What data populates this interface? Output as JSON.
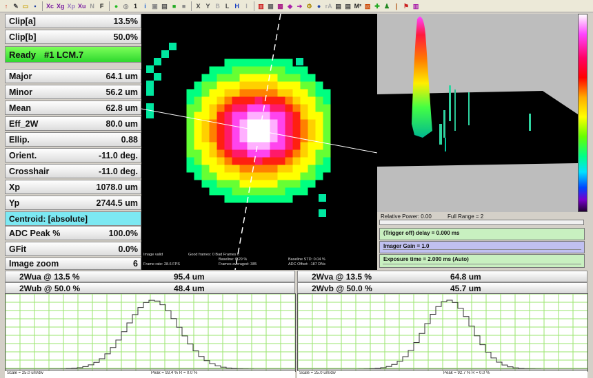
{
  "toolbar": {
    "buttons": [
      {
        "name": "up-arrow-icon",
        "label": "↑",
        "color": "#cc2200"
      },
      {
        "name": "pencil-icon",
        "label": "✎",
        "color": "#444"
      },
      {
        "name": "open-folder-icon",
        "label": "▭",
        "color": "#c8a000"
      },
      {
        "name": "save-icon",
        "label": "▪",
        "color": "#2040a0"
      },
      {
        "name": "xc-button",
        "label": "Xc",
        "color": "#7a1fa0"
      },
      {
        "name": "xg-button",
        "label": "Xg",
        "color": "#7a1fa0"
      },
      {
        "name": "xp-button",
        "label": "Xp",
        "color": "#9a7ac0"
      },
      {
        "name": "xu-button",
        "label": "Xu",
        "color": "#7a1fa0"
      },
      {
        "name": "n-button",
        "label": "N",
        "color": "#999"
      },
      {
        "name": "f-button",
        "label": "F",
        "color": "#222"
      },
      {
        "name": "green-circle-icon",
        "label": "●",
        "color": "#22bb22"
      },
      {
        "name": "grey-circle-icon",
        "label": "◎",
        "color": "#888"
      },
      {
        "name": "one-button",
        "label": "1",
        "color": "#222"
      },
      {
        "name": "info-icon",
        "label": "i",
        "color": "#1a60d0"
      },
      {
        "name": "lock-icon",
        "label": "▣",
        "color": "#888"
      },
      {
        "name": "printer-icon",
        "label": "▤",
        "color": "#555"
      },
      {
        "name": "green-square-icon",
        "label": "■",
        "color": "#22aa22"
      },
      {
        "name": "grey-square-icon",
        "label": "■",
        "color": "#888"
      },
      {
        "name": "x-button",
        "label": "X",
        "color": "#444"
      },
      {
        "name": "y-button",
        "label": "Y",
        "color": "#444"
      },
      {
        "name": "b-button",
        "label": "B",
        "color": "#aaa"
      },
      {
        "name": "l-button",
        "label": "L",
        "color": "#444"
      },
      {
        "name": "h-button",
        "label": "H",
        "color": "#1a40c0"
      },
      {
        "name": "i-button",
        "label": "I",
        "color": "#aaa"
      },
      {
        "name": "histogram-icon",
        "label": "▥",
        "color": "#cc2222"
      },
      {
        "name": "grid-icon",
        "label": "▦",
        "color": "#666"
      },
      {
        "name": "pattern-icon",
        "label": "▩",
        "color": "#aa2288"
      },
      {
        "name": "left-arrow-icon",
        "label": "◆",
        "color": "#aa22aa"
      },
      {
        "name": "right-arrow-icon",
        "label": "➔",
        "color": "#aa22aa"
      },
      {
        "name": "link-icon",
        "label": "⚙",
        "color": "#aa8800"
      },
      {
        "name": "globe-icon",
        "label": "●",
        "color": "#2244aa"
      },
      {
        "name": "ra-button",
        "label": "rA",
        "color": "#aaa"
      },
      {
        "name": "print-icon",
        "label": "▤",
        "color": "#444"
      },
      {
        "name": "print2-icon",
        "label": "▤",
        "color": "#444"
      },
      {
        "name": "m2-button",
        "label": "M²",
        "color": "#222"
      },
      {
        "name": "chart-icon",
        "label": "▧",
        "color": "#cc4400"
      },
      {
        "name": "plus-icon",
        "label": "✚",
        "color": "#22aa22"
      },
      {
        "name": "person-icon",
        "label": "♟",
        "color": "#228822"
      },
      {
        "name": "pin-icon",
        "label": "❘",
        "color": "#aa4400"
      },
      {
        "name": "magnet-icon",
        "label": "⚑",
        "color": "#cc2222"
      },
      {
        "name": "bars-icon",
        "label": "▥",
        "color": "#aa22aa"
      }
    ]
  },
  "panel": {
    "clip_a": {
      "label": "Clip[a]",
      "value": "13.5%"
    },
    "clip_b": {
      "label": "Clip[b]",
      "value": "50.0%"
    },
    "ready": {
      "status": "Ready",
      "device": "#1 LCM.7"
    },
    "major": {
      "label": "Major",
      "value": "64.1 um"
    },
    "minor": {
      "label": "Minor",
      "value": "56.2 um"
    },
    "mean": {
      "label": "Mean",
      "value": "62.8 um"
    },
    "eff2w": {
      "label": "Eff_2W",
      "value": "80.0 um"
    },
    "ellip": {
      "label": "Ellip.",
      "value": "0.88"
    },
    "orient": {
      "label": "Orient.",
      "value": "-11.0 deg."
    },
    "crosshair": {
      "label": "Crosshair",
      "value": "-11.0 deg."
    },
    "xp": {
      "label": "Xp",
      "value": "1078.0 um"
    },
    "yp": {
      "label": "Yp",
      "value": "2744.5 um"
    },
    "centroid": {
      "label": "Centroid: [absolute]"
    },
    "adc_peak": {
      "label": "ADC Peak %",
      "value": "100.0%"
    },
    "gfit": {
      "label": "GFit",
      "value": "0.0%"
    },
    "zoom": {
      "label": "Image zoom",
      "value": "6"
    }
  },
  "beam_image": {
    "status": "Image valid",
    "frames": "Good frames: 0 Bad Frames 0",
    "baseline": "Baseline: 0.29 %",
    "baseline_std": "Baseline STD: 0.04 %",
    "frame_rate": "Frame rate: 28.6 FPS",
    "frames_averaged": "Frames averaged: 385",
    "adc_offset": "ADC Offset: -187 DNs"
  },
  "controls": {
    "relative_power": "Relative Power: 0.00",
    "full_range": "Full Range = 2",
    "trigger": "(Trigger off) delay = 0.000 ms",
    "gain": "Imager Gain = 1.0",
    "exposure": "Exposure time = 2.000 ms (Auto)"
  },
  "stats": {
    "wua_label": "2Wua @ 13.5 %",
    "wua_value": "95.4 um",
    "wub_label": "2Wub @ 50.0 %",
    "wub_value": "48.4 um",
    "wva_label": "2Wva @ 13.5 %",
    "wva_value": "64.8 um",
    "wvb_label": "2Wvb @ 50.0 %",
    "wvb_value": "45.7 um"
  },
  "footer": {
    "left_scale": "Scale = 25.0 um/div",
    "left_peak": "Peak = 93.4 %  R = 0.0 %",
    "right_scale": "Scale = 25.0 um/div",
    "right_peak": "Peak = 92.7 %  R = 0.0 %"
  },
  "colors": {
    "ready_green": "#2ed82e",
    "centroid_cyan": "#7ce8f2",
    "grid_green": "#9ae66e",
    "trigger_bar": "#c8f0c0",
    "gain_bar": "#c0c0f0",
    "exposure_bar": "#c8f0c0"
  }
}
